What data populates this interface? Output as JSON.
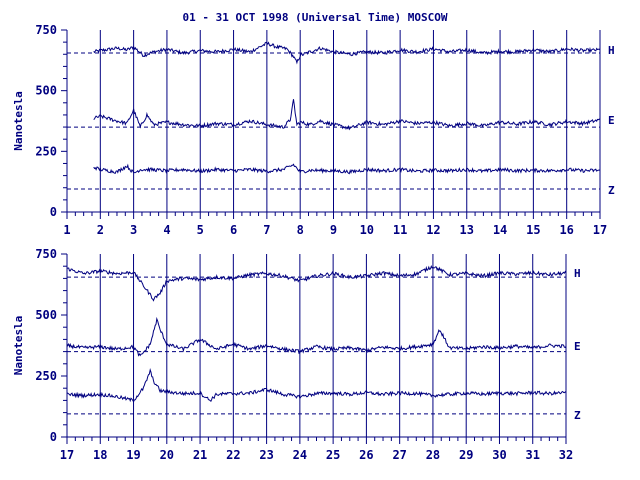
{
  "title": "01 - 31 OCT 1998 (Universal Time) MOSCOW",
  "colors": {
    "ink": "#000080",
    "background": "#ffffff"
  },
  "chart_data": [
    {
      "type": "line",
      "panel": "top",
      "ylabel": "Nanotesla",
      "xlim": [
        1,
        17
      ],
      "ylim": [
        0,
        750
      ],
      "xticks": [
        "1",
        "2",
        "3",
        "4",
        "5",
        "6",
        "7",
        "8",
        "9",
        "10",
        "11",
        "12",
        "13",
        "14",
        "15",
        "16",
        "17"
      ],
      "yticks": [
        "0",
        "250",
        "500",
        "750"
      ],
      "grid": "vertical",
      "series": [
        {
          "name": "H",
          "baseline": 655,
          "x": [
            1.8,
            2.0,
            2.5,
            2.8,
            3.0,
            3.3,
            3.6,
            4.0,
            4.5,
            5.0,
            5.5,
            6.0,
            6.5,
            7.0,
            7.3,
            7.6,
            7.8,
            7.9,
            8.0,
            8.3,
            8.6,
            9.0,
            9.5,
            10.0,
            10.5,
            11.0,
            11.5,
            12.0,
            12.5,
            13.0,
            13.5,
            14.0,
            14.5,
            15.0,
            15.5,
            16.0,
            16.5,
            17.0
          ],
          "values": [
            660,
            665,
            675,
            668,
            680,
            645,
            660,
            670,
            655,
            665,
            660,
            670,
            660,
            695,
            680,
            672,
            640,
            615,
            645,
            660,
            675,
            660,
            650,
            660,
            655,
            668,
            660,
            672,
            660,
            668,
            655,
            662,
            660,
            668,
            660,
            672,
            665,
            668
          ]
        },
        {
          "name": "E",
          "baseline": 350,
          "x": [
            1.8,
            2.0,
            2.5,
            2.8,
            3.0,
            3.2,
            3.4,
            3.6,
            4.0,
            4.5,
            5.0,
            5.5,
            6.0,
            6.5,
            7.0,
            7.5,
            7.7,
            7.8,
            7.9,
            8.0,
            8.3,
            8.6,
            9.0,
            9.5,
            10.0,
            10.5,
            11.0,
            11.5,
            12.0,
            12.5,
            13.0,
            13.5,
            14.0,
            14.5,
            15.0,
            15.5,
            16.0,
            16.5,
            17.0
          ],
          "values": [
            385,
            395,
            375,
            365,
            420,
            350,
            400,
            360,
            370,
            360,
            355,
            365,
            360,
            375,
            360,
            350,
            380,
            460,
            360,
            370,
            360,
            375,
            360,
            345,
            370,
            360,
            375,
            365,
            370,
            355,
            365,
            355,
            370,
            362,
            372,
            360,
            372,
            365,
            380
          ]
        },
        {
          "name": "Z",
          "baseline": 95,
          "x": [
            1.8,
            2.0,
            2.5,
            2.8,
            3.0,
            3.2,
            3.5,
            4.0,
            4.5,
            5.0,
            5.5,
            6.0,
            6.5,
            7.0,
            7.5,
            7.8,
            8.0,
            8.3,
            9.0,
            9.5,
            10.0,
            10.5,
            11.0,
            11.5,
            12.0,
            12.5,
            13.0,
            13.5,
            14.0,
            14.5,
            15.0,
            15.5,
            16.0,
            16.5,
            17.0
          ],
          "values": [
            185,
            175,
            165,
            190,
            160,
            175,
            175,
            170,
            175,
            168,
            175,
            170,
            175,
            168,
            175,
            195,
            165,
            172,
            170,
            165,
            175,
            170,
            175,
            168,
            172,
            170,
            175,
            168,
            175,
            170,
            172,
            170,
            175,
            170,
            172
          ]
        }
      ]
    },
    {
      "type": "line",
      "panel": "bottom",
      "ylabel": "Nanotesla",
      "xlim": [
        17,
        32
      ],
      "ylim": [
        0,
        750
      ],
      "xticks": [
        "17",
        "18",
        "19",
        "20",
        "21",
        "22",
        "23",
        "24",
        "25",
        "26",
        "27",
        "28",
        "29",
        "30",
        "31",
        "32"
      ],
      "yticks": [
        "0",
        "250",
        "500",
        "750"
      ],
      "grid": "vertical",
      "series": [
        {
          "name": "H",
          "baseline": 655,
          "x": [
            17.0,
            17.5,
            18.0,
            18.5,
            19.0,
            19.3,
            19.6,
            19.8,
            20.0,
            20.5,
            21.0,
            21.5,
            22.0,
            22.5,
            23.0,
            23.5,
            24.0,
            24.5,
            25.0,
            25.5,
            26.0,
            26.5,
            27.0,
            27.5,
            28.0,
            28.5,
            29.0,
            29.5,
            30.0,
            30.5,
            31.0,
            31.5,
            32.0
          ],
          "values": [
            690,
            670,
            680,
            670,
            675,
            620,
            565,
            590,
            640,
            650,
            645,
            655,
            650,
            665,
            670,
            660,
            640,
            660,
            670,
            655,
            660,
            672,
            660,
            668,
            700,
            665,
            670,
            660,
            672,
            668,
            672,
            665,
            672
          ]
        },
        {
          "name": "E",
          "baseline": 350,
          "x": [
            17.0,
            17.5,
            18.0,
            18.5,
            19.0,
            19.2,
            19.5,
            19.7,
            19.8,
            20.0,
            20.5,
            21.0,
            21.5,
            22.0,
            22.5,
            23.0,
            23.5,
            24.0,
            24.5,
            25.0,
            25.5,
            26.0,
            26.5,
            27.0,
            27.5,
            28.0,
            28.2,
            28.5,
            29.0,
            29.5,
            30.0,
            30.5,
            31.0,
            31.5,
            32.0
          ],
          "values": [
            375,
            365,
            370,
            360,
            370,
            330,
            380,
            480,
            440,
            380,
            360,
            400,
            360,
            380,
            360,
            375,
            360,
            350,
            370,
            360,
            365,
            355,
            368,
            362,
            370,
            380,
            440,
            365,
            362,
            370,
            365,
            372,
            365,
            375,
            372
          ]
        },
        {
          "name": "Z",
          "baseline": 95,
          "x": [
            17.0,
            17.5,
            18.0,
            18.5,
            19.0,
            19.3,
            19.5,
            19.6,
            19.8,
            20.0,
            20.5,
            21.0,
            21.3,
            21.5,
            22.0,
            22.5,
            23.0,
            23.5,
            24.0,
            24.5,
            25.0,
            25.5,
            26.0,
            26.5,
            27.0,
            27.5,
            28.0,
            28.5,
            29.0,
            29.5,
            30.0,
            30.5,
            31.0,
            31.5,
            32.0
          ],
          "values": [
            175,
            170,
            175,
            165,
            150,
            200,
            270,
            230,
            190,
            185,
            178,
            180,
            150,
            175,
            178,
            180,
            195,
            175,
            165,
            178,
            180,
            175,
            182,
            175,
            180,
            178,
            170,
            175,
            180,
            176,
            180,
            178,
            182,
            178,
            182
          ]
        }
      ]
    }
  ]
}
